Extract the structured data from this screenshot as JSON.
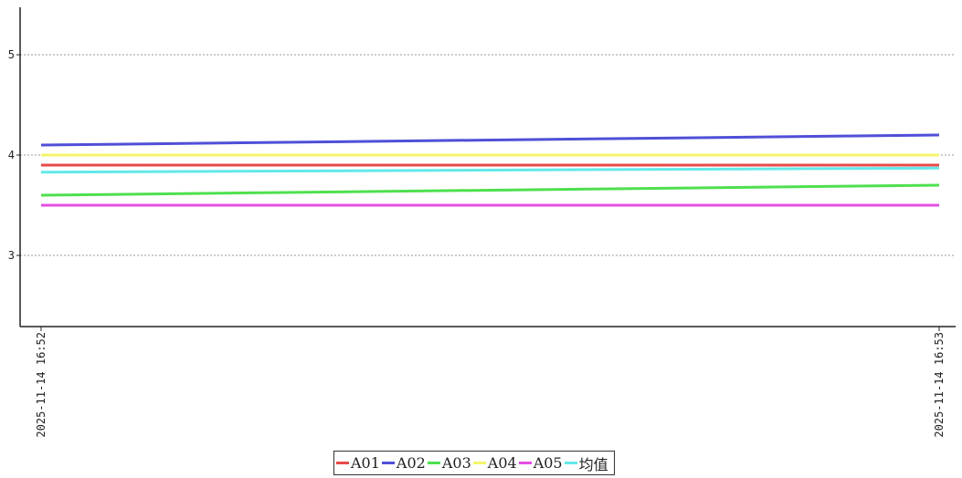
{
  "chart_data": {
    "type": "line",
    "x": [
      "2025-11-14 16:52",
      "2025-11-14 16:53"
    ],
    "ylim": [
      2.3,
      5.5
    ],
    "yticks": [
      3,
      4,
      5
    ],
    "grid": "horizontal-dashed",
    "legend_position": "bottom-center",
    "series": [
      {
        "name": "A01",
        "color": "#e84a4a",
        "values": [
          3.9,
          3.9
        ]
      },
      {
        "name": "A02",
        "color": "#4f4fd8",
        "values": [
          4.1,
          4.2
        ]
      },
      {
        "name": "A03",
        "color": "#4ee04e",
        "values": [
          3.6,
          3.7
        ]
      },
      {
        "name": "A04",
        "color": "#f5f56b",
        "values": [
          4.0,
          4.0
        ]
      },
      {
        "name": "A05",
        "color": "#e34ee3",
        "values": [
          3.5,
          3.5
        ]
      },
      {
        "name": "均值",
        "color": "#63e8e8",
        "values": [
          3.83,
          3.87
        ]
      }
    ]
  }
}
